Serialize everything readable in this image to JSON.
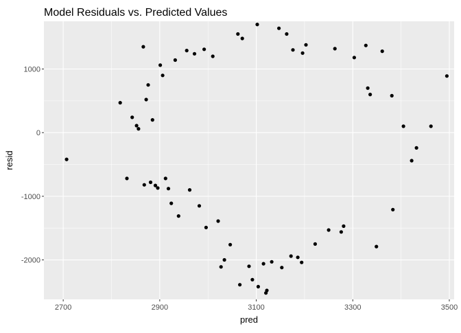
{
  "chart_data": {
    "type": "scatter",
    "title": "Model Residuals vs. Predicted Values",
    "xlabel": "pred",
    "ylabel": "resid",
    "xlim": [
      2660,
      3510
    ],
    "ylim": [
      -2620,
      1750
    ],
    "xticks": [
      2700,
      2900,
      3100,
      3300,
      3500
    ],
    "xtick_labels": [
      "2700",
      "2900",
      "3100",
      "3300",
      "3500"
    ],
    "yticks": [
      -2000,
      -1000,
      0,
      1000
    ],
    "ytick_labels": [
      "-2000",
      "-1000",
      "0",
      "1000"
    ],
    "grid": true,
    "panel_background": "#ebebeb",
    "grid_color": "#ffffff",
    "point_color": "#000000",
    "points": [
      [
        2707,
        -420
      ],
      [
        2818,
        470
      ],
      [
        2832,
        -720
      ],
      [
        2843,
        240
      ],
      [
        2852,
        110
      ],
      [
        2856,
        60
      ],
      [
        2866,
        1350
      ],
      [
        2868,
        -820
      ],
      [
        2872,
        520
      ],
      [
        2876,
        750
      ],
      [
        2881,
        -780
      ],
      [
        2885,
        200
      ],
      [
        2891,
        -830
      ],
      [
        2896,
        -870
      ],
      [
        2901,
        1060
      ],
      [
        2906,
        900
      ],
      [
        2912,
        -720
      ],
      [
        2918,
        -880
      ],
      [
        2924,
        -1110
      ],
      [
        2932,
        1140
      ],
      [
        2939,
        -1310
      ],
      [
        2956,
        1290
      ],
      [
        2962,
        -900
      ],
      [
        2972,
        1240
      ],
      [
        2982,
        -1150
      ],
      [
        2992,
        1310
      ],
      [
        2996,
        -1490
      ],
      [
        3010,
        1200
      ],
      [
        3021,
        -1390
      ],
      [
        3027,
        -2110
      ],
      [
        3034,
        -2000
      ],
      [
        3046,
        -1760
      ],
      [
        3062,
        1550
      ],
      [
        3066,
        -2390
      ],
      [
        3071,
        1480
      ],
      [
        3085,
        -2100
      ],
      [
        3092,
        -2310
      ],
      [
        3102,
        1700
      ],
      [
        3104,
        -2420
      ],
      [
        3115,
        -2060
      ],
      [
        3120,
        -2520
      ],
      [
        3122,
        -2480
      ],
      [
        3132,
        -2030
      ],
      [
        3147,
        1640
      ],
      [
        3153,
        -2120
      ],
      [
        3163,
        1550
      ],
      [
        3172,
        -1940
      ],
      [
        3176,
        1300
      ],
      [
        3186,
        -1960
      ],
      [
        3194,
        -2040
      ],
      [
        3196,
        1250
      ],
      [
        3203,
        1380
      ],
      [
        3222,
        -1750
      ],
      [
        3250,
        -1530
      ],
      [
        3263,
        1320
      ],
      [
        3276,
        -1560
      ],
      [
        3281,
        -1470
      ],
      [
        3303,
        1180
      ],
      [
        3327,
        1370
      ],
      [
        3331,
        700
      ],
      [
        3336,
        600
      ],
      [
        3349,
        -1790
      ],
      [
        3361,
        1280
      ],
      [
        3381,
        580
      ],
      [
        3383,
        -1210
      ],
      [
        3405,
        100
      ],
      [
        3422,
        -440
      ],
      [
        3432,
        -240
      ],
      [
        3462,
        100
      ],
      [
        3495,
        890
      ]
    ]
  }
}
